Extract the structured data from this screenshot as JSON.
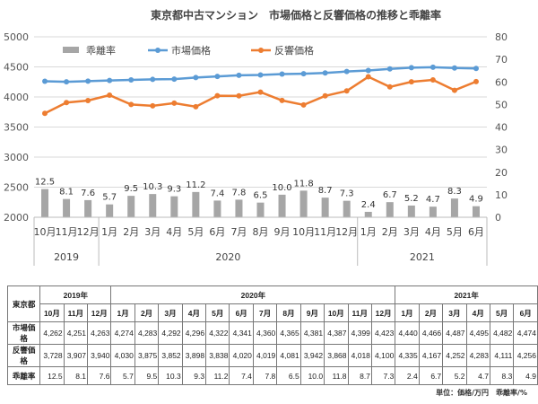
{
  "chart_data": {
    "type": "bar+line",
    "title": "東京都中古マンション　市場価格と反響価格の推移と乖離率",
    "categories": [
      "10月",
      "11月",
      "12月",
      "1月",
      "2月",
      "3月",
      "4月",
      "5月",
      "6月",
      "7月",
      "8月",
      "9月",
      "10月",
      "11月",
      "12月",
      "1月",
      "2月",
      "3月",
      "4月",
      "5月",
      "6月"
    ],
    "years": [
      {
        "label": "2019",
        "span": 3
      },
      {
        "label": "2020",
        "span": 12
      },
      {
        "label": "2021",
        "span": 6
      }
    ],
    "series": [
      {
        "name": "乖離率",
        "type": "bar",
        "axis": "right",
        "color": "#a6a6a6",
        "values": [
          12.5,
          8.1,
          7.6,
          5.7,
          9.5,
          10.3,
          9.3,
          11.2,
          7.4,
          7.8,
          6.5,
          10.0,
          11.8,
          8.7,
          7.3,
          2.4,
          6.7,
          5.2,
          4.7,
          8.3,
          4.9
        ]
      },
      {
        "name": "市場価格",
        "type": "line",
        "axis": "left",
        "color": "#5b9bd5",
        "values": [
          4262,
          4251,
          4263,
          4274,
          4283,
          4292,
          4296,
          4322,
          4341,
          4360,
          4365,
          4381,
          4387,
          4399,
          4423,
          4440,
          4466,
          4487,
          4495,
          4482,
          4474
        ]
      },
      {
        "name": "反響価格",
        "type": "line",
        "axis": "left",
        "color": "#ed7d31",
        "values": [
          3728,
          3907,
          3940,
          4030,
          3875,
          3852,
          3898,
          3838,
          4020,
          4019,
          4081,
          3942,
          3868,
          4018,
          4100,
          4335,
          4167,
          4252,
          4283,
          4111,
          4256
        ]
      }
    ],
    "ylim_left": [
      2000,
      5000
    ],
    "yticks_left": [
      2000,
      2500,
      3000,
      3500,
      4000,
      4500,
      5000
    ],
    "ylim_right": [
      0,
      80
    ],
    "yticks_right": [
      0,
      10,
      20,
      30,
      40,
      50,
      60,
      70,
      80
    ],
    "grid": true,
    "legend": "top-left"
  },
  "table": {
    "corner": "東京都",
    "years": [
      "2019年",
      "2020年",
      "2021年"
    ],
    "rows": [
      {
        "label": "市場価格",
        "values": [
          "4,262",
          "4,251",
          "4,263",
          "4,274",
          "4,283",
          "4,292",
          "4,296",
          "4,322",
          "4,341",
          "4,360",
          "4,365",
          "4,381",
          "4,387",
          "4,399",
          "4,423",
          "4,440",
          "4,466",
          "4,487",
          "4,495",
          "4,482",
          "4,474"
        ]
      },
      {
        "label": "反響価格",
        "values": [
          "3,728",
          "3,907",
          "3,940",
          "4,030",
          "3,875",
          "3,852",
          "3,898",
          "3,838",
          "4,020",
          "4,019",
          "4,081",
          "3,942",
          "3,868",
          "4,018",
          "4,100",
          "4,335",
          "4,167",
          "4,252",
          "4,283",
          "4,111",
          "4,256"
        ]
      },
      {
        "label": "乖離率",
        "values": [
          "12.5",
          "8.1",
          "7.6",
          "5.7",
          "9.5",
          "10.3",
          "9.3",
          "11.2",
          "7.4",
          "7.8",
          "6.5",
          "10.0",
          "11.8",
          "8.7",
          "7.3",
          "2.4",
          "6.7",
          "5.2",
          "4.7",
          "8.3",
          "4.9"
        ]
      }
    ],
    "unit": "単位：価格/万円　乖離率/%"
  }
}
